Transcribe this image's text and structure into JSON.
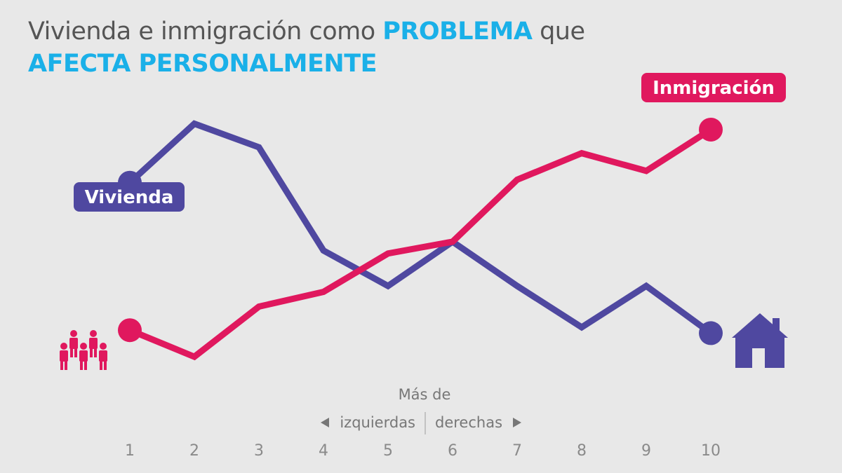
{
  "title": {
    "part1": "Vivienda e inmigración como ",
    "highlight1": "PROBLEMA",
    "part2": " que",
    "highlight2": "AFECTA PERSONALMENTE"
  },
  "axis": {
    "caption": "Más de",
    "left_label": "izquierdas",
    "right_label": "derechas"
  },
  "colors": {
    "vivienda": "#4f48a0",
    "inmigracion": "#e0185e",
    "highlight": "#1ab0e8"
  },
  "icons": {
    "inmigracion": "people-group-icon",
    "vivienda": "house-icon"
  },
  "chart_data": {
    "type": "line",
    "x": [
      1,
      2,
      3,
      4,
      5,
      6,
      7,
      8,
      9,
      10
    ],
    "series": [
      {
        "name": "Vivienda",
        "values": [
          68,
          88,
          80,
          45,
          33,
          48,
          33,
          19,
          33,
          17
        ]
      },
      {
        "name": "Inmigración",
        "values": [
          18,
          9,
          26,
          31,
          44,
          48,
          69,
          78,
          72,
          86
        ]
      }
    ],
    "ylim": [
      0,
      100
    ],
    "grid": false,
    "legend": "labels next to series ends"
  }
}
